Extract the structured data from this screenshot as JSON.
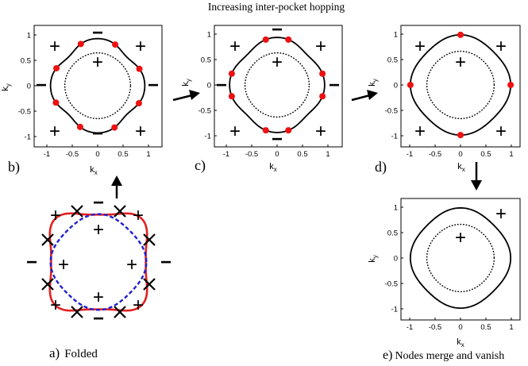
{
  "header": {
    "title": "Increasing inter-pocket hopping"
  },
  "colors": {
    "node": "#ee1111",
    "folded_outer": "#e02020",
    "folded_inner": "#2020d0",
    "ink": "#000000"
  },
  "panels": {
    "b": {
      "label": "b)",
      "xlabel": "k",
      "xsub": "x",
      "ylabel": "k",
      "ysub": "y",
      "xticks": [
        "-1",
        "-0.5",
        "0",
        "0.5",
        "1"
      ],
      "yticks": [
        "1",
        "0.5",
        "0",
        "-0.5",
        "-1"
      ],
      "signs": [
        "+",
        "+",
        "+",
        "+",
        "+",
        "−",
        "−",
        "−",
        "−"
      ]
    },
    "c": {
      "label": "c)",
      "xlabel": "k",
      "xsub": "x",
      "ylabel": "k",
      "ysub": "y",
      "xticks": [
        "-1",
        "-0.5",
        "0",
        "0.5",
        "1"
      ],
      "yticks": [
        "1",
        "0.5",
        "0",
        "-0.5",
        "-1"
      ],
      "signs": [
        "+",
        "+",
        "+",
        "+",
        "+",
        "−",
        "−",
        "−",
        "−"
      ]
    },
    "d": {
      "label": "d)",
      "xlabel": "k",
      "xsub": "x",
      "ylabel": "k",
      "ysub": "y",
      "xticks": [
        "-1",
        "-0.5",
        "0",
        "0.5",
        "1"
      ],
      "yticks": [
        "1",
        "0.5",
        "0",
        "-0.5",
        "-1"
      ],
      "signs": [
        "+",
        "+",
        "+",
        "+",
        "+"
      ]
    },
    "e": {
      "label": "e)",
      "caption": "Nodes merge and vanish",
      "xlabel": "k",
      "xsub": "x",
      "ylabel": "k",
      "ysub": "y",
      "xticks": [
        "-1",
        "-0.5",
        "0",
        "0.5",
        "1"
      ],
      "yticks": [
        "1",
        "0.5",
        "0",
        "-0.5",
        "-1"
      ],
      "signs": [
        "+",
        "+"
      ]
    },
    "a": {
      "label": "a)",
      "caption": "Folded",
      "signs": [
        "+",
        "+",
        "+",
        "+",
        "+",
        "+",
        "+",
        "+",
        "+",
        "−",
        "−",
        "−",
        "−"
      ]
    }
  }
}
